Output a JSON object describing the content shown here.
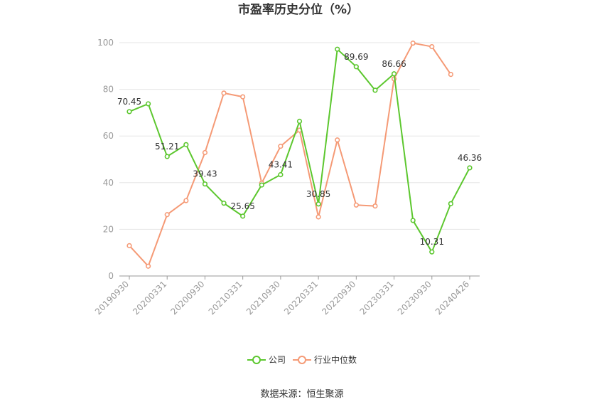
{
  "chart_data": {
    "type": "line",
    "title": "市盈率历史分位（%）",
    "source": "数据来源：恒生聚源",
    "xlabel": "",
    "ylabel": "",
    "ylim": [
      0,
      100
    ],
    "yticks": [
      0,
      20,
      40,
      60,
      80,
      100
    ],
    "legend_position": "bottom",
    "grid": true,
    "x": [
      "20190930",
      "20191231",
      "20200331",
      "20200630",
      "20200930",
      "20201231",
      "20210331",
      "20210630",
      "20210930",
      "20211231",
      "20220331",
      "20220630",
      "20220930",
      "20221231",
      "20230331",
      "20230630",
      "20230930",
      "20231231",
      "20240426"
    ],
    "x_tick_labels": [
      "20190930",
      "20200331",
      "20200930",
      "20210331",
      "20210930",
      "20220331",
      "20220930",
      "20230331",
      "20230930",
      "20240426"
    ],
    "series": [
      {
        "name": "公司",
        "color": "#5cc72e",
        "values": [
          70.45,
          73.8,
          51.21,
          56.3,
          39.43,
          31.2,
          25.65,
          39.0,
          43.41,
          66.3,
          30.85,
          97.2,
          89.69,
          79.6,
          86.66,
          23.8,
          10.31,
          31.0,
          46.36
        ],
        "data_labels": {
          "0": "70.45",
          "2": "51.21",
          "4": "39.43",
          "6": "25.65",
          "8": "43.41",
          "10": "30.85",
          "12": "89.69",
          "14": "86.66",
          "16": "10.31",
          "18": "46.36"
        }
      },
      {
        "name": "行业中位数",
        "color": "#f59a76",
        "values": [
          13.0,
          4.2,
          26.3,
          32.3,
          52.9,
          78.4,
          76.8,
          39.8,
          55.6,
          62.5,
          25.3,
          58.3,
          30.4,
          30.0,
          84.5,
          99.8,
          98.3,
          86.4,
          null
        ]
      }
    ]
  }
}
